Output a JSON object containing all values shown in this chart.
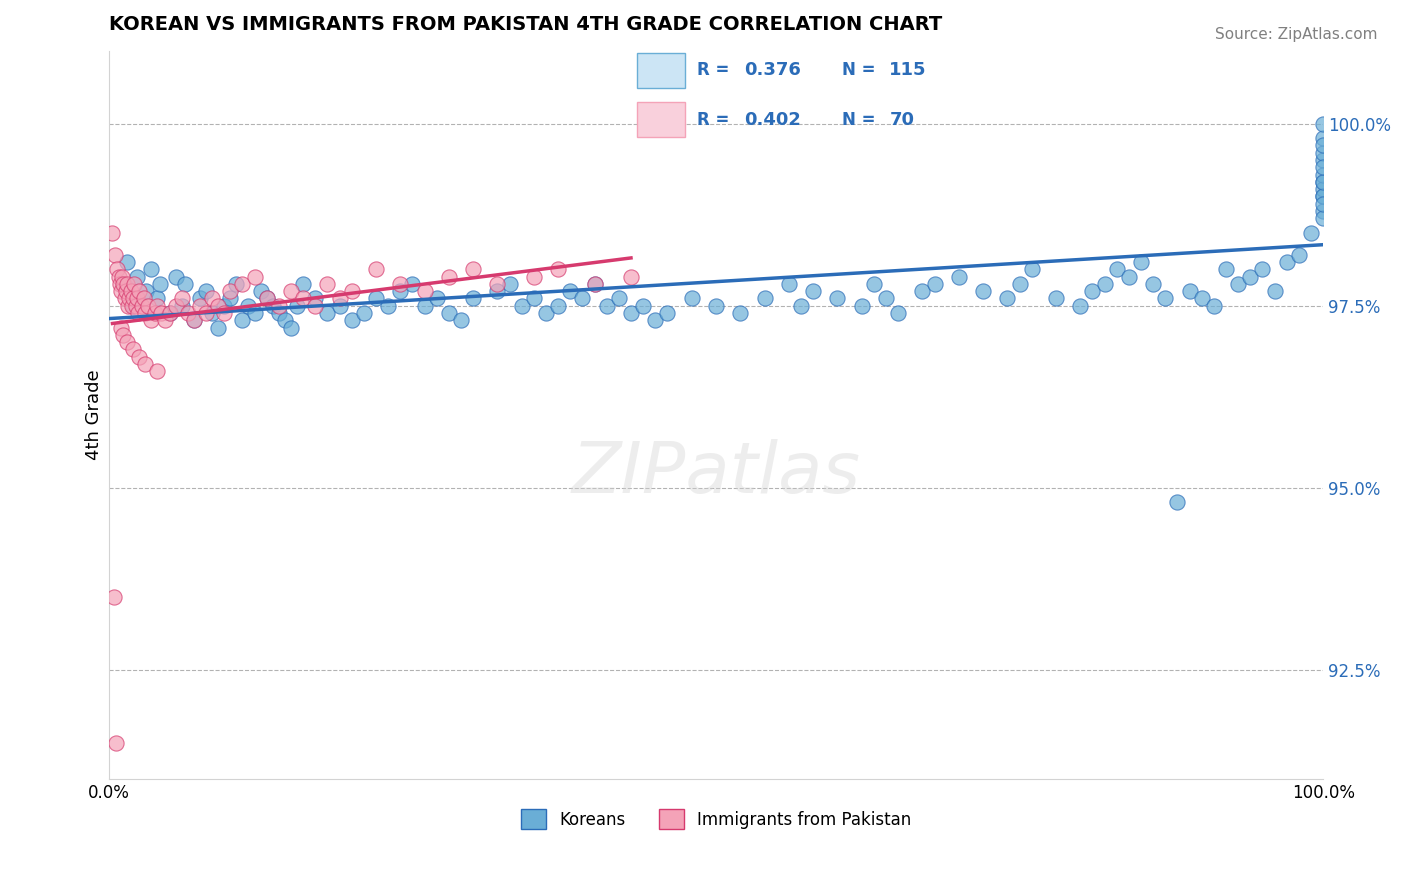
{
  "title": "KOREAN VS IMMIGRANTS FROM PAKISTAN 4TH GRADE CORRELATION CHART",
  "source": "Source: ZipAtlas.com",
  "xlabel": "",
  "ylabel": "4th Grade",
  "xlim": [
    0.0,
    100.0
  ],
  "ylim": [
    91.0,
    101.0
  ],
  "yticks": [
    92.5,
    95.0,
    97.5,
    100.0
  ],
  "ytick_labels": [
    "92.5%",
    "95.0%",
    "97.5%",
    "100.0%"
  ],
  "xticks": [
    0.0,
    25.0,
    50.0,
    75.0,
    100.0
  ],
  "xtick_labels": [
    "0.0%",
    "",
    "",
    "",
    "100.0%"
  ],
  "blue_R": 0.376,
  "blue_N": 115,
  "pink_R": 0.402,
  "pink_N": 70,
  "blue_color": "#6aaed6",
  "pink_color": "#f4a3b8",
  "blue_line_color": "#2b6cb8",
  "pink_line_color": "#d63a6e",
  "legend_blue_label": "Koreans",
  "legend_pink_label": "Immigrants from Pakistan",
  "watermark": "ZIPatlas",
  "blue_scatter_x": [
    1.2,
    1.5,
    2.0,
    2.3,
    3.1,
    3.5,
    4.0,
    4.2,
    5.0,
    5.5,
    6.0,
    6.3,
    7.0,
    7.5,
    8.0,
    8.5,
    9.0,
    9.5,
    10.0,
    10.5,
    11.0,
    11.5,
    12.0,
    12.5,
    13.0,
    13.5,
    14.0,
    14.5,
    15.0,
    15.5,
    16.0,
    17.0,
    18.0,
    19.0,
    20.0,
    21.0,
    22.0,
    23.0,
    24.0,
    25.0,
    26.0,
    27.0,
    28.0,
    29.0,
    30.0,
    32.0,
    33.0,
    34.0,
    35.0,
    36.0,
    37.0,
    38.0,
    39.0,
    40.0,
    41.0,
    42.0,
    43.0,
    44.0,
    45.0,
    46.0,
    48.0,
    50.0,
    52.0,
    54.0,
    56.0,
    57.0,
    58.0,
    60.0,
    62.0,
    63.0,
    64.0,
    65.0,
    67.0,
    68.0,
    70.0,
    72.0,
    74.0,
    75.0,
    76.0,
    78.0,
    80.0,
    81.0,
    82.0,
    83.0,
    84.0,
    85.0,
    86.0,
    87.0,
    88.0,
    89.0,
    90.0,
    91.0,
    92.0,
    93.0,
    94.0,
    95.0,
    96.0,
    97.0,
    98.0,
    99.0,
    100.0,
    100.0,
    100.0,
    100.0,
    100.0,
    100.0,
    100.0,
    100.0,
    100.0,
    100.0,
    100.0,
    100.0,
    100.0,
    100.0,
    100.0
  ],
  "blue_scatter_y": [
    97.8,
    98.1,
    97.5,
    97.9,
    97.7,
    98.0,
    97.6,
    97.8,
    97.4,
    97.9,
    97.5,
    97.8,
    97.3,
    97.6,
    97.7,
    97.4,
    97.2,
    97.5,
    97.6,
    97.8,
    97.3,
    97.5,
    97.4,
    97.7,
    97.6,
    97.5,
    97.4,
    97.3,
    97.2,
    97.5,
    97.8,
    97.6,
    97.4,
    97.5,
    97.3,
    97.4,
    97.6,
    97.5,
    97.7,
    97.8,
    97.5,
    97.6,
    97.4,
    97.3,
    97.6,
    97.7,
    97.8,
    97.5,
    97.6,
    97.4,
    97.5,
    97.7,
    97.6,
    97.8,
    97.5,
    97.6,
    97.4,
    97.5,
    97.3,
    97.4,
    97.6,
    97.5,
    97.4,
    97.6,
    97.8,
    97.5,
    97.7,
    97.6,
    97.5,
    97.8,
    97.6,
    97.4,
    97.7,
    97.8,
    97.9,
    97.7,
    97.6,
    97.8,
    98.0,
    97.6,
    97.5,
    97.7,
    97.8,
    98.0,
    97.9,
    98.1,
    97.8,
    97.6,
    94.8,
    97.7,
    97.6,
    97.5,
    98.0,
    97.8,
    97.9,
    98.0,
    97.7,
    98.1,
    98.2,
    98.5,
    99.2,
    99.5,
    99.0,
    98.8,
    99.1,
    99.3,
    99.6,
    99.0,
    98.7,
    99.2,
    98.9,
    99.4,
    99.8,
    100.0,
    99.7
  ],
  "pink_scatter_x": [
    0.3,
    0.5,
    0.7,
    0.8,
    0.9,
    1.0,
    1.1,
    1.2,
    1.3,
    1.4,
    1.5,
    1.6,
    1.7,
    1.8,
    1.9,
    2.0,
    2.1,
    2.2,
    2.3,
    2.4,
    2.5,
    2.7,
    2.9,
    3.0,
    3.2,
    3.5,
    3.8,
    4.0,
    4.3,
    4.6,
    5.0,
    5.5,
    6.0,
    6.5,
    7.0,
    7.5,
    8.0,
    8.5,
    9.0,
    9.5,
    10.0,
    11.0,
    12.0,
    13.0,
    14.0,
    15.0,
    16.0,
    17.0,
    18.0,
    19.0,
    20.0,
    22.0,
    24.0,
    26.0,
    28.0,
    30.0,
    32.0,
    35.0,
    37.0,
    40.0,
    43.0,
    0.4,
    0.6,
    1.0,
    1.2,
    1.5,
    2.0,
    2.5,
    3.0,
    4.0
  ],
  "pink_scatter_y": [
    98.5,
    98.2,
    98.0,
    97.9,
    97.8,
    97.7,
    97.9,
    97.8,
    97.6,
    97.7,
    97.8,
    97.5,
    97.6,
    97.7,
    97.5,
    97.6,
    97.8,
    97.5,
    97.6,
    97.4,
    97.7,
    97.5,
    97.6,
    97.4,
    97.5,
    97.3,
    97.4,
    97.5,
    97.4,
    97.3,
    97.4,
    97.5,
    97.6,
    97.4,
    97.3,
    97.5,
    97.4,
    97.6,
    97.5,
    97.4,
    97.7,
    97.8,
    97.9,
    97.6,
    97.5,
    97.7,
    97.6,
    97.5,
    97.8,
    97.6,
    97.7,
    98.0,
    97.8,
    97.7,
    97.9,
    98.0,
    97.8,
    97.9,
    98.0,
    97.8,
    97.9,
    93.5,
    91.5,
    97.2,
    97.1,
    97.0,
    96.9,
    96.8,
    96.7,
    96.6
  ]
}
